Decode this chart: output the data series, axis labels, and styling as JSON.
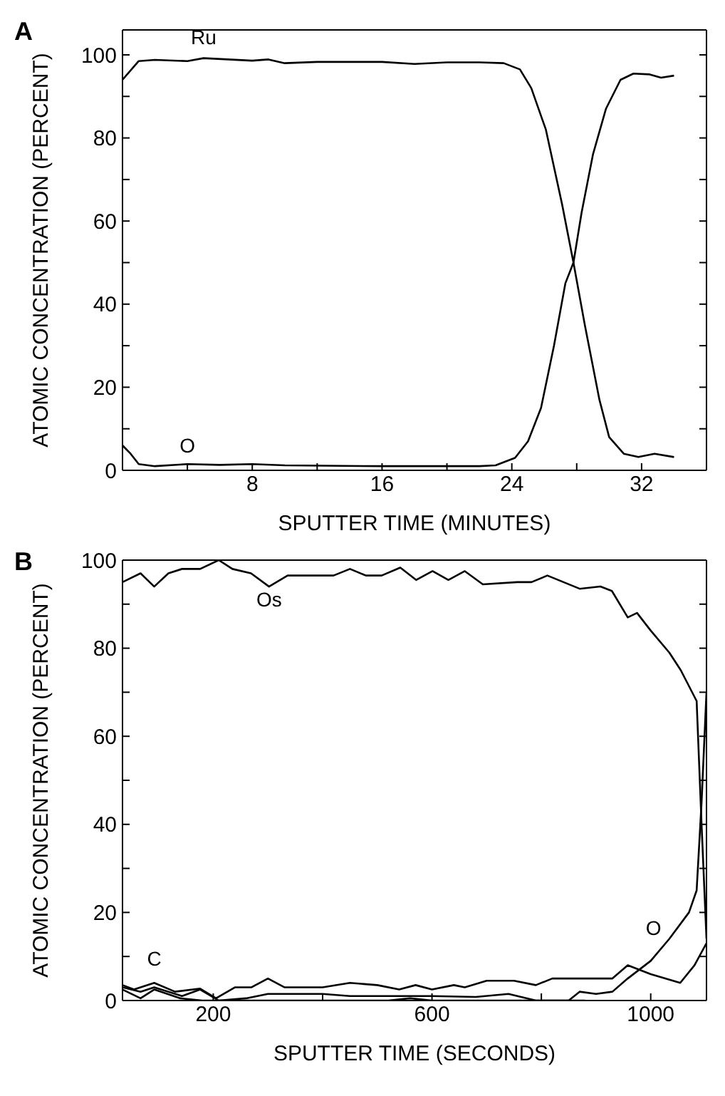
{
  "chart_data": [
    {
      "type": "line",
      "title": "A",
      "xlabel": "SPUTTER TIME (MINUTES)",
      "ylabel": "ATOMIC CONCENTRATION (PERCENT)",
      "xlim": [
        0,
        36
      ],
      "ylim": [
        0,
        106
      ],
      "xticks": [
        {
          "value": 4,
          "label": null
        },
        8,
        {
          "value": 12,
          "label": null
        },
        16,
        {
          "value": 20,
          "label": null
        },
        24,
        {
          "value": 28,
          "label": null
        },
        32
      ],
      "yticks": [
        0,
        {
          "value": 10,
          "label": null
        },
        20,
        {
          "value": 30,
          "label": null
        },
        40,
        {
          "value": 50,
          "label": null
        },
        60,
        {
          "value": 70,
          "label": null
        },
        80,
        {
          "value": 90,
          "label": null
        },
        100
      ],
      "marker": "none",
      "line_style": "solid",
      "series": [
        {
          "name": "Ru",
          "color": "#000000",
          "x": [
            0,
            1,
            2,
            4,
            5,
            8,
            9,
            10,
            12,
            16,
            18,
            20,
            22,
            23.5,
            24.5,
            25.2,
            26.1,
            27.1,
            27.8,
            28.5,
            29.4,
            30,
            30.9,
            31.8,
            32.8,
            34
          ],
          "values": [
            94,
            98.5,
            98.8,
            98.5,
            99.2,
            98.6,
            98.9,
            98,
            98.3,
            98.3,
            97.8,
            98.2,
            98.2,
            98,
            96.5,
            92,
            82,
            64,
            50,
            35,
            17,
            8,
            4,
            3.2,
            4,
            3.2
          ]
        },
        {
          "name": "O",
          "color": "#000000",
          "x": [
            0,
            0.5,
            1,
            2,
            4,
            6,
            8,
            10,
            16,
            22,
            23,
            24.2,
            25,
            25.8,
            26.6,
            27.3,
            27.8,
            28.3,
            29,
            29.8,
            30.7,
            31.5,
            32.5,
            33.2,
            34
          ],
          "values": [
            6,
            4,
            1.5,
            1,
            1.5,
            1.3,
            1.5,
            1.2,
            1,
            1,
            1.2,
            3,
            7,
            15,
            30,
            45,
            50,
            62,
            76,
            87,
            94,
            95.5,
            95.3,
            94.5,
            95
          ]
        }
      ]
    },
    {
      "type": "line",
      "title": "B",
      "xlabel": "SPUTTER TIME (SECONDS)",
      "ylabel": "ATOMIC CONCENTRATION (PERCENT)",
      "xlim": [
        34,
        1102
      ],
      "ylim": [
        0,
        100
      ],
      "xticks": [
        200,
        {
          "value": 400,
          "label": null
        },
        600,
        {
          "value": 800,
          "label": null
        },
        1000
      ],
      "yticks": [
        0,
        {
          "value": 10,
          "label": null
        },
        20,
        {
          "value": 30,
          "label": null
        },
        40,
        {
          "value": 50,
          "label": null
        },
        60,
        {
          "value": 70,
          "label": null
        },
        80,
        {
          "value": 90,
          "label": null
        },
        100
      ],
      "marker": "none",
      "line_style": "solid",
      "series": [
        {
          "name": "Os",
          "color": "#000000",
          "x": [
            34,
            67,
            92,
            118,
            143,
            176,
            210,
            235,
            269,
            302,
            336,
            370,
            420,
            450,
            479,
            508,
            542,
            571,
            601,
            630,
            660,
            693,
            756,
            782,
            811,
            870,
            908,
            929,
            958,
            975,
            1000,
            1034,
            1055,
            1084,
            1093,
            1102
          ],
          "values": [
            95,
            97,
            94,
            97,
            98,
            98,
            100,
            98,
            97,
            94,
            96.5,
            96.5,
            96.5,
            98,
            96.5,
            96.5,
            98.3,
            95.5,
            97.5,
            95.5,
            97.5,
            94.5,
            95,
            95,
            96.5,
            93.5,
            94,
            93,
            87,
            88,
            84,
            79,
            75,
            68,
            40,
            14
          ]
        },
        {
          "name": "C",
          "color": "#000000",
          "x": [
            34,
            55,
            92,
            130,
            176,
            205,
            240,
            270,
            300,
            330,
            400,
            450,
            500,
            540,
            570,
            600,
            640,
            660,
            700,
            750,
            790,
            820,
            900,
            930,
            958,
            1000,
            1054,
            1080,
            1102
          ],
          "values": [
            3.5,
            2.5,
            4,
            2,
            2.7,
            0.5,
            3,
            3,
            5,
            3,
            3,
            4,
            3.5,
            2.5,
            3.5,
            2.5,
            3.5,
            3,
            4.5,
            4.5,
            3.5,
            5,
            5,
            5,
            8,
            6,
            4,
            8,
            13
          ]
        },
        {
          "name": "O",
          "color": "#000000",
          "x": [
            34,
            67,
            92,
            143,
            176,
            210,
            260,
            300,
            400,
            450,
            520,
            600,
            680,
            740,
            790,
            850,
            870,
            900,
            930,
            958,
            1000,
            1034,
            1070,
            1084,
            1093,
            1102
          ],
          "values": [
            3,
            2,
            3,
            1,
            2.5,
            0,
            0.5,
            1.5,
            1.5,
            1,
            1,
            1,
            0.8,
            1.5,
            0,
            0,
            2,
            1.5,
            2,
            5,
            9,
            14,
            20,
            25,
            45,
            70
          ]
        },
        {
          "color": "#000000",
          "x": [
            34,
            67,
            92,
            140,
            180,
            520,
            560,
            600,
            660,
            880
          ],
          "values": [
            2.5,
            0.5,
            2.5,
            0.5,
            0,
            0,
            0.5,
            0,
            0,
            0
          ]
        }
      ]
    }
  ]
}
